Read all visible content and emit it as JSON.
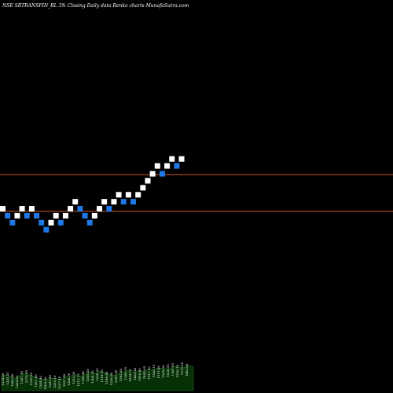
{
  "chart_data": {
    "type": "renko",
    "title": "NSE SRTRANSFIN_BL 3% Closing Daily data Renko charts MunafaSutra.com",
    "colors": {
      "background": "#000000",
      "up_brick": "#ffffff",
      "down_brick": "#1e78e6",
      "reference_line": "#c85a28",
      "volume_fill": "#063006",
      "volume_line": "#1a6a1a"
    },
    "reference_lines": [
      1700,
      1280
    ],
    "ylim": [
      -800,
      3700
    ],
    "bricks": [
      {
        "y": 1310,
        "dir": "up"
      },
      {
        "y": 1230,
        "dir": "down"
      },
      {
        "y": 1150,
        "dir": "down"
      },
      {
        "y": 1230,
        "dir": "up"
      },
      {
        "y": 1310,
        "dir": "up"
      },
      {
        "y": 1230,
        "dir": "down"
      },
      {
        "y": 1310,
        "dir": "up"
      },
      {
        "y": 1230,
        "dir": "down"
      },
      {
        "y": 1150,
        "dir": "down"
      },
      {
        "y": 1070,
        "dir": "down"
      },
      {
        "y": 1150,
        "dir": "up"
      },
      {
        "y": 1230,
        "dir": "up"
      },
      {
        "y": 1150,
        "dir": "down"
      },
      {
        "y": 1230,
        "dir": "up"
      },
      {
        "y": 1310,
        "dir": "up"
      },
      {
        "y": 1390,
        "dir": "up"
      },
      {
        "y": 1310,
        "dir": "down"
      },
      {
        "y": 1230,
        "dir": "down"
      },
      {
        "y": 1150,
        "dir": "down"
      },
      {
        "y": 1230,
        "dir": "up"
      },
      {
        "y": 1310,
        "dir": "up"
      },
      {
        "y": 1390,
        "dir": "up"
      },
      {
        "y": 1310,
        "dir": "down"
      },
      {
        "y": 1390,
        "dir": "up"
      },
      {
        "y": 1470,
        "dir": "up"
      },
      {
        "y": 1390,
        "dir": "down"
      },
      {
        "y": 1470,
        "dir": "up"
      },
      {
        "y": 1390,
        "dir": "down"
      },
      {
        "y": 1470,
        "dir": "up"
      },
      {
        "y": 1550,
        "dir": "up"
      },
      {
        "y": 1630,
        "dir": "up"
      },
      {
        "y": 1710,
        "dir": "up"
      },
      {
        "y": 1800,
        "dir": "up"
      },
      {
        "y": 1710,
        "dir": "down"
      },
      {
        "y": 1800,
        "dir": "up"
      },
      {
        "y": 1880,
        "dir": "up"
      },
      {
        "y": 1800,
        "dir": "down"
      },
      {
        "y": 1880,
        "dir": "up"
      }
    ],
    "volume_labels": [
      "1314.60",
      "1325.35",
      "1286.40",
      "1264.85",
      "1307.10",
      "1270.85",
      "1316.95",
      "1287.00",
      "1244.00",
      "1205.80",
      "1241.90",
      "1255.10",
      "1237.40",
      "1251.40",
      "1288.70",
      "1253.20",
      "1212.15",
      "1199.40",
      "1245.45",
      "1264.20",
      "1208.20",
      "1319.10",
      "1196.40",
      "1236.80",
      "1347.90",
      "1392.40",
      "1389.10",
      "1414.15",
      "1463.40",
      "1416.00",
      "1442.65",
      "1517.10",
      "1526.15",
      "1515.80",
      "1509.30",
      "1626.55",
      "1581.95",
      "1556.15",
      "1570.60",
      "1662.00"
    ],
    "volume_profile": [
      0.3,
      0.32,
      0.28,
      0.25,
      0.34,
      0.36,
      0.31,
      0.27,
      0.24,
      0.22,
      0.26,
      0.25,
      0.23,
      0.28,
      0.3,
      0.33,
      0.29,
      0.34,
      0.38,
      0.35,
      0.4,
      0.37,
      0.33,
      0.31,
      0.36,
      0.39,
      0.42,
      0.38,
      0.41,
      0.4,
      0.44,
      0.43,
      0.47,
      0.45,
      0.46,
      0.48,
      0.5,
      0.47,
      0.52,
      0.49
    ]
  }
}
